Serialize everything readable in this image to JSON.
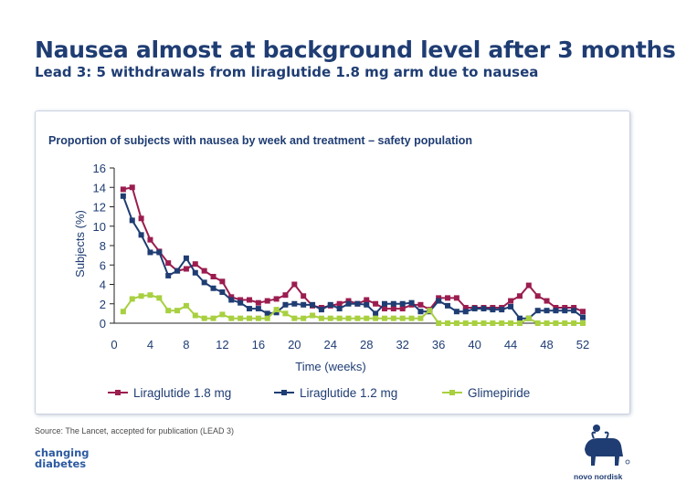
{
  "header": {
    "title": "Nausea almost at background level after 3 months",
    "subtitle": "Lead 3: 5 withdrawals from liraglutide 1.8 mg arm due to nausea"
  },
  "footer": {
    "source": "Source: The Lancet, accepted for publication (LEAD 3)",
    "changing": "changing",
    "diabetes": "diabetes",
    "novo": "novo nordisk"
  },
  "colors": {
    "lira18": "#9b1d4f",
    "lira12": "#1f3d73",
    "glim": "#a8d040",
    "axis": "#222222",
    "text": "#1f3d73"
  },
  "chart_data": {
    "type": "line",
    "title": "Proportion of subjects with nausea by week and treatment – safety population",
    "xlabel": "Time (weeks)",
    "ylabel": "Subjects (%)",
    "xlim": [
      0,
      52
    ],
    "ylim": [
      0,
      16
    ],
    "xticks": [
      0,
      4,
      8,
      12,
      16,
      20,
      24,
      28,
      32,
      36,
      40,
      44,
      48,
      52
    ],
    "yticks": [
      0,
      2,
      4,
      6,
      8,
      10,
      12,
      14,
      16
    ],
    "legend_position": "bottom",
    "x": [
      1,
      2,
      3,
      4,
      5,
      6,
      7,
      8,
      9,
      10,
      11,
      12,
      13,
      14,
      15,
      16,
      17,
      18,
      19,
      20,
      21,
      22,
      23,
      24,
      25,
      26,
      27,
      28,
      29,
      30,
      31,
      32,
      33,
      34,
      35,
      36,
      37,
      38,
      39,
      40,
      41,
      42,
      43,
      44,
      45,
      46,
      47,
      48,
      49,
      50,
      51,
      52
    ],
    "series": [
      {
        "name": "Liraglutide 1.8 mg",
        "color": "#9b1d4f",
        "values": [
          13.8,
          14.0,
          10.8,
          8.6,
          7.4,
          6.2,
          5.4,
          5.6,
          6.1,
          5.4,
          4.8,
          4.3,
          2.7,
          2.4,
          2.4,
          2.1,
          2.3,
          2.5,
          2.9,
          4.0,
          2.8,
          1.8,
          1.6,
          1.8,
          2.0,
          2.3,
          2.0,
          2.4,
          2.0,
          1.5,
          1.5,
          1.5,
          1.9,
          1.9,
          1.4,
          2.6,
          2.6,
          2.6,
          1.6,
          1.6,
          1.6,
          1.6,
          1.6,
          2.3,
          2.8,
          3.9,
          2.8,
          2.3,
          1.6,
          1.6,
          1.6,
          1.2
        ]
      },
      {
        "name": "Liraglutide 1.2 mg",
        "color": "#1f3d73",
        "values": [
          13.1,
          10.6,
          9.1,
          7.3,
          7.3,
          4.9,
          5.4,
          6.7,
          5.2,
          4.2,
          3.6,
          3.2,
          2.4,
          2.1,
          1.5,
          1.5,
          1.0,
          1.1,
          1.9,
          2.0,
          1.9,
          1.9,
          1.4,
          1.9,
          1.5,
          2.0,
          2.0,
          1.9,
          1.0,
          2.0,
          2.0,
          2.0,
          2.1,
          1.2,
          1.2,
          2.3,
          1.8,
          1.2,
          1.2,
          1.5,
          1.5,
          1.4,
          1.4,
          1.7,
          0.5,
          0.5,
          1.3,
          1.3,
          1.3,
          1.3,
          1.3,
          0.6
        ]
      },
      {
        "name": "Glimepiride",
        "color": "#a8d040",
        "values": [
          1.2,
          2.5,
          2.8,
          2.9,
          2.6,
          1.3,
          1.3,
          1.8,
          0.8,
          0.5,
          0.5,
          0.9,
          0.5,
          0.5,
          0.5,
          0.5,
          0.5,
          1.4,
          1.0,
          0.5,
          0.5,
          0.8,
          0.5,
          0.5,
          0.5,
          0.5,
          0.5,
          0.5,
          0.5,
          0.5,
          0.5,
          0.5,
          0.5,
          0.5,
          1.3,
          0.0,
          0.0,
          0.0,
          0.0,
          0.0,
          0.0,
          0.0,
          0.0,
          0.0,
          0.0,
          0.5,
          0.0,
          0.0,
          0.0,
          0.0,
          0.0,
          0.0
        ]
      }
    ]
  }
}
